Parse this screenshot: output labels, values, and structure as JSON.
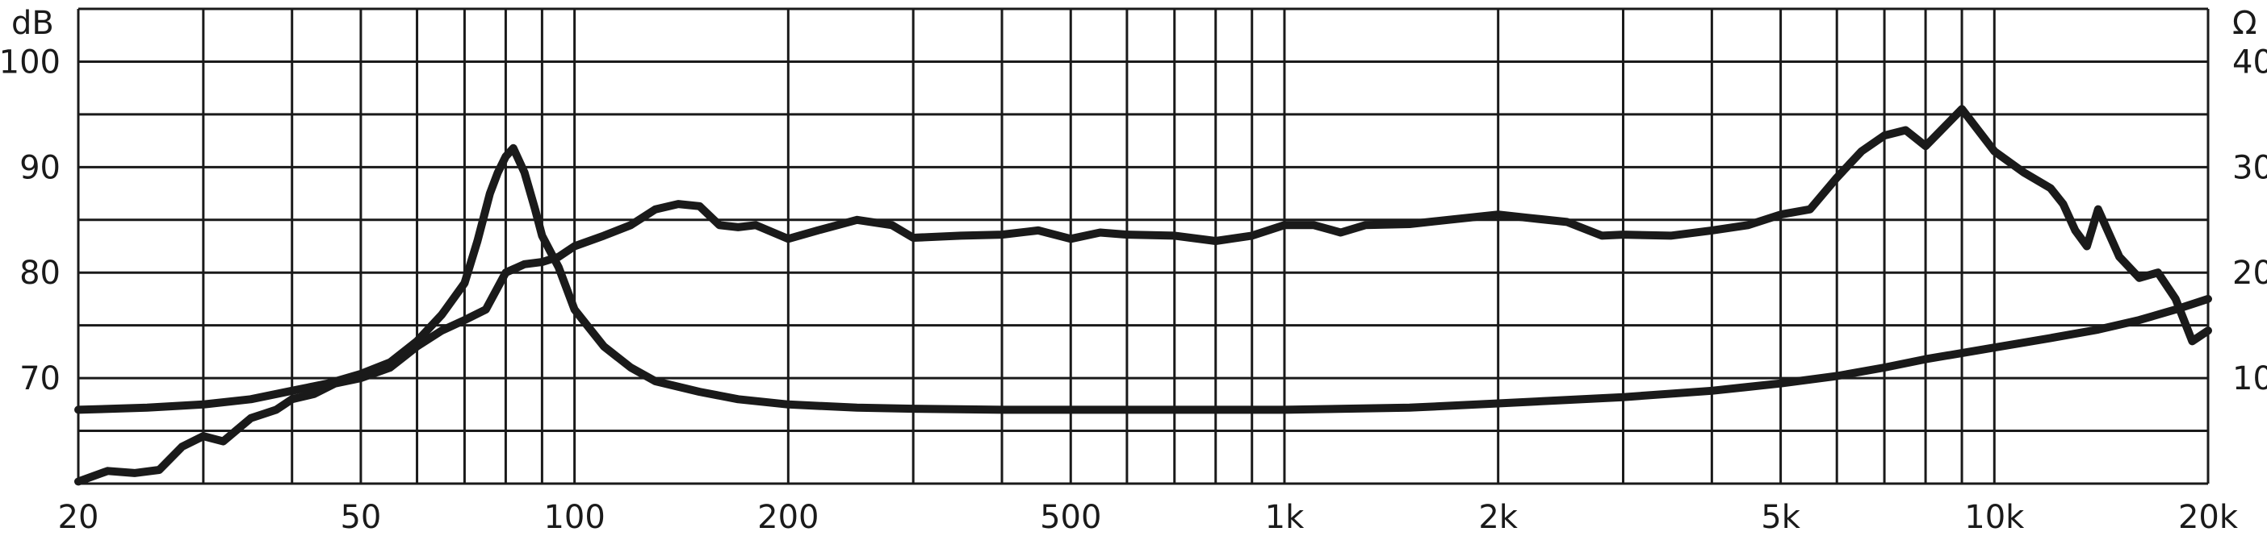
{
  "chart_data": {
    "type": "line",
    "title": "",
    "xlabel": "",
    "ylabel_left": "dB",
    "ylabel_right": "Ω",
    "x_scale": "log",
    "xlim": [
      20,
      20000
    ],
    "ylim_left": [
      60,
      105
    ],
    "ylim_right": [
      0,
      45
    ],
    "grid": true,
    "x_ticks": [
      {
        "v": 20,
        "label": "20"
      },
      {
        "v": 50,
        "label": "50"
      },
      {
        "v": 100,
        "label": "100"
      },
      {
        "v": 200,
        "label": "200"
      },
      {
        "v": 500,
        "label": "500"
      },
      {
        "v": 1000,
        "label": "1k"
      },
      {
        "v": 2000,
        "label": "2k"
      },
      {
        "v": 5000,
        "label": "5k"
      },
      {
        "v": 10000,
        "label": "10k"
      },
      {
        "v": 20000,
        "label": "20k"
      }
    ],
    "y_ticks_left": [
      {
        "v": 70,
        "label": "70"
      },
      {
        "v": 80,
        "label": "80"
      },
      {
        "v": 90,
        "label": "90"
      },
      {
        "v": 100,
        "label": "100"
      }
    ],
    "y_ticks_right": [
      {
        "v": 10,
        "label": "10"
      },
      {
        "v": 20,
        "label": "20"
      },
      {
        "v": 30,
        "label": "30"
      },
      {
        "v": 40,
        "label": "40"
      }
    ],
    "series": [
      {
        "axis": "left",
        "x": [
          20,
          22,
          24,
          26,
          28,
          30,
          32,
          35,
          38,
          40,
          43,
          46,
          50,
          55,
          60,
          65,
          70,
          75,
          80,
          85,
          90,
          95,
          100,
          110,
          120,
          130,
          140,
          150,
          160,
          170,
          180,
          200,
          220,
          250,
          280,
          300,
          350,
          400,
          450,
          500,
          550,
          600,
          700,
          800,
          900,
          1000,
          1100,
          1200,
          1300,
          1500,
          1700,
          2000,
          2200,
          2500,
          2800,
          3000,
          3500,
          4000,
          4500,
          5000,
          5500,
          6000,
          6500,
          7000,
          7500,
          8000,
          9000,
          10000,
          11000,
          12000,
          12500,
          13000,
          13500,
          14000,
          15000,
          16000,
          17000,
          18000,
          19000,
          20000
        ],
        "values": [
          60.2,
          61.2,
          61.0,
          61.3,
          63.5,
          64.5,
          64.0,
          66.2,
          67.0,
          68.0,
          68.5,
          69.5,
          70.0,
          71.0,
          73.0,
          74.5,
          75.5,
          76.5,
          80.0,
          80.8,
          81.0,
          81.5,
          82.5,
          83.5,
          84.5,
          86.0,
          86.5,
          86.3,
          84.5,
          84.3,
          84.5,
          83.2,
          84.0,
          85.0,
          84.5,
          83.3,
          83.5,
          83.6,
          84.0,
          83.2,
          83.8,
          83.6,
          83.5,
          83.0,
          83.5,
          84.5,
          84.5,
          83.8,
          84.5,
          84.6,
          85.0,
          85.5,
          85.2,
          84.8,
          83.5,
          83.6,
          83.5,
          84.0,
          84.5,
          85.5,
          86.0,
          89.0,
          91.5,
          93.0,
          93.5,
          92.0,
          95.5,
          91.5,
          89.5,
          88.0,
          86.5,
          84.0,
          82.5,
          86.0,
          81.5,
          79.5,
          80.0,
          77.5,
          73.5,
          74.5
        ]
      },
      {
        "axis": "right",
        "x": [
          20,
          25,
          30,
          35,
          40,
          45,
          50,
          55,
          60,
          65,
          70,
          73,
          76,
          78,
          80,
          82,
          85,
          88,
          90,
          95,
          100,
          110,
          120,
          130,
          150,
          170,
          200,
          250,
          300,
          400,
          500,
          700,
          1000,
          1500,
          2000,
          3000,
          4000,
          5000,
          6000,
          7000,
          8000,
          10000,
          12000,
          14000,
          16000,
          18000,
          20000
        ],
        "values": [
          7.0,
          7.2,
          7.5,
          8.0,
          8.8,
          9.5,
          10.4,
          11.5,
          13.5,
          16.0,
          19.0,
          23.0,
          27.5,
          29.5,
          31.0,
          31.8,
          29.5,
          26.0,
          23.5,
          20.5,
          16.5,
          13.0,
          11.0,
          9.7,
          8.7,
          8.0,
          7.5,
          7.2,
          7.1,
          7.0,
          7.0,
          7.0,
          7.0,
          7.2,
          7.6,
          8.2,
          8.8,
          9.5,
          10.2,
          11.0,
          11.8,
          12.9,
          13.8,
          14.6,
          15.5,
          16.5,
          17.5
        ]
      }
    ]
  }
}
